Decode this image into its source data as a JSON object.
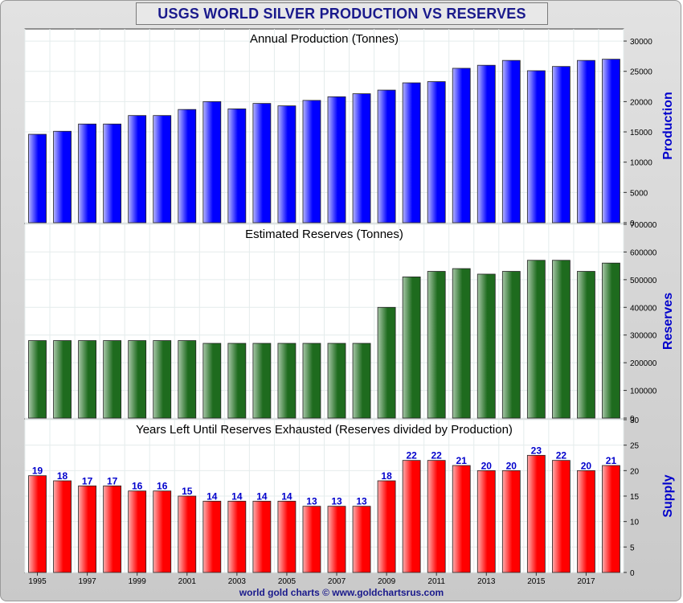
{
  "title": "USGS WORLD SILVER PRODUCTION VS RESERVES",
  "footer": "world gold charts © www.goldchartsrus.com",
  "colors": {
    "production": "#0000ff",
    "reserves": "#1e6b1e",
    "years_left": "#ff0000",
    "label": "#0000cc",
    "title": "#1a1a8c"
  },
  "chart_data": [
    {
      "type": "bar",
      "title": "Annual Production (Tonnes)",
      "ylabel": "Production",
      "ylim": [
        0,
        32000
      ],
      "yticks": [
        0,
        5000,
        10000,
        15000,
        20000,
        25000,
        30000
      ],
      "categories": [
        "1995",
        "1996",
        "1997",
        "1998",
        "1999",
        "2000",
        "2001",
        "2002",
        "2003",
        "2004",
        "2005",
        "2006",
        "2007",
        "2008",
        "2009",
        "2010",
        "2011",
        "2012",
        "2013",
        "2014",
        "2015",
        "2016",
        "2017",
        "2018"
      ],
      "values": [
        14600,
        15100,
        16300,
        16300,
        17700,
        17700,
        18700,
        20000,
        18800,
        19700,
        19300,
        20200,
        20800,
        21300,
        21900,
        23100,
        23300,
        25500,
        26000,
        26800,
        25100,
        25800,
        26800,
        27000
      ],
      "grid": true
    },
    {
      "type": "bar",
      "title": "Estimated Reserves (Tonnes)",
      "ylabel": "Reserves",
      "ylim": [
        0,
        700000
      ],
      "yticks": [
        0,
        100000,
        200000,
        300000,
        400000,
        500000,
        600000,
        700000
      ],
      "categories": [
        "1995",
        "1996",
        "1997",
        "1998",
        "1999",
        "2000",
        "2001",
        "2002",
        "2003",
        "2004",
        "2005",
        "2006",
        "2007",
        "2008",
        "2009",
        "2010",
        "2011",
        "2012",
        "2013",
        "2014",
        "2015",
        "2016",
        "2017",
        "2018"
      ],
      "values": [
        280000,
        280000,
        280000,
        280000,
        280000,
        280000,
        280000,
        270000,
        270000,
        270000,
        270000,
        270000,
        270000,
        270000,
        400000,
        510000,
        530000,
        540000,
        520000,
        530000,
        570000,
        570000,
        530000,
        560000
      ],
      "grid": true
    },
    {
      "type": "bar",
      "title": "Years Left Until Reserves Exhausted (Reserves divided by Production)",
      "ylabel": "Supply",
      "ylim": [
        0,
        30
      ],
      "yticks": [
        0,
        5,
        10,
        15,
        20,
        25,
        30
      ],
      "categories": [
        "1995",
        "1996",
        "1997",
        "1998",
        "1999",
        "2000",
        "2001",
        "2002",
        "2003",
        "2004",
        "2005",
        "2006",
        "2007",
        "2008",
        "2009",
        "2010",
        "2011",
        "2012",
        "2013",
        "2014",
        "2015",
        "2016",
        "2017",
        "2018"
      ],
      "values": [
        19,
        18,
        17,
        17,
        16,
        16,
        15,
        14,
        14,
        14,
        14,
        13,
        13,
        13,
        18,
        22,
        22,
        21,
        20,
        20,
        23,
        22,
        20,
        21
      ],
      "data_labels": [
        "19",
        "18",
        "17",
        "17",
        "16",
        "16",
        "15",
        "14",
        "14",
        "14",
        "14",
        "13",
        "13",
        "13",
        "18",
        "22",
        "22",
        "21",
        "20",
        "20",
        "23",
        "22",
        "20",
        "21"
      ],
      "xtick_labels": [
        "1995",
        "1997",
        "1999",
        "2001",
        "2003",
        "2005",
        "2007",
        "2009",
        "2011",
        "2013",
        "2015",
        "2017"
      ],
      "grid": true
    }
  ]
}
